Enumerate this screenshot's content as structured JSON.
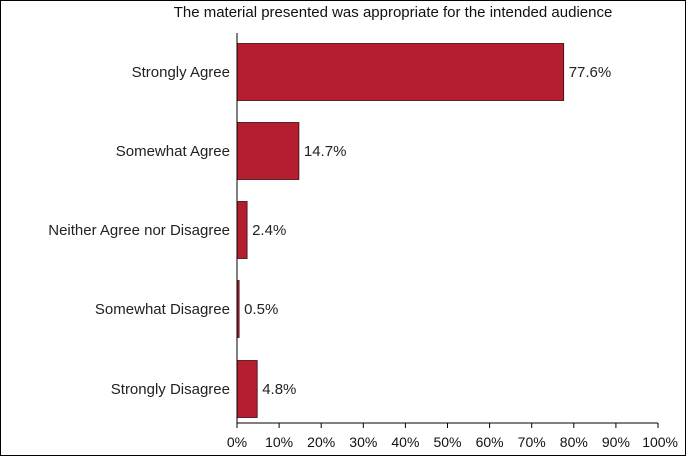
{
  "chart_data": {
    "type": "bar",
    "orientation": "horizontal",
    "title": "The material presented was appropriate for the intended audience",
    "categories": [
      "Strongly Agree",
      "Somewhat Agree",
      "Neither Agree nor Disagree",
      "Somewhat Disagree",
      "Strongly Disagree"
    ],
    "values": [
      77.6,
      14.7,
      2.4,
      0.5,
      4.8
    ],
    "data_labels": [
      "77.6%",
      "14.7%",
      "2.4%",
      "0.5%",
      "4.8%"
    ],
    "xlim": [
      0,
      100
    ],
    "x_ticks": [
      "0%",
      "10%",
      "20%",
      "30%",
      "40%",
      "50%",
      "60%",
      "70%",
      "80%",
      "90%",
      "100%"
    ],
    "xlabel": "",
    "ylabel": "",
    "bar_color": "#b41e2e",
    "grid": false,
    "legend": "none"
  }
}
